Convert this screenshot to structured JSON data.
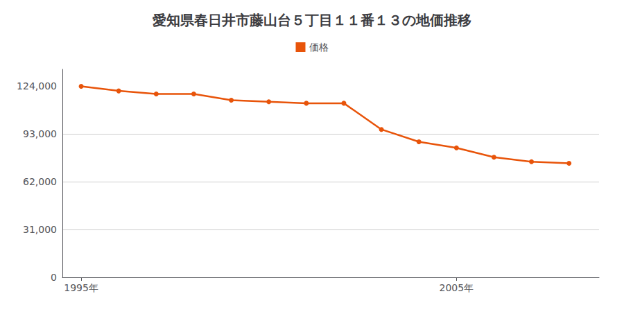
{
  "chart_data": {
    "type": "line",
    "title": "愛知県春日井市藤山台５丁目１１番１３の地価推移",
    "x": [
      1995,
      1996,
      1997,
      1998,
      1999,
      2000,
      2001,
      2002,
      2003,
      2004,
      2005,
      2006,
      2007,
      2008
    ],
    "series": [
      {
        "name": "価格",
        "color": "#E8540A",
        "marker": "circle",
        "values": [
          124000,
          121000,
          119000,
          119000,
          115000,
          114000,
          113000,
          113000,
          96000,
          88000,
          84000,
          78000,
          75000,
          74000
        ]
      }
    ],
    "xlim": [
      1994.5,
      2008.8
    ],
    "xticks": [
      {
        "value": 1995,
        "label": "1995年"
      },
      {
        "value": 2005,
        "label": "2005年"
      }
    ],
    "ylim": [
      0,
      135000
    ],
    "yticks": [
      0,
      {
        "value": 31000,
        "label": "31,000"
      },
      {
        "value": 62000,
        "label": "62,000"
      },
      {
        "value": 93000,
        "label": "93,000"
      },
      {
        "value": 124000,
        "label": "124,000"
      }
    ],
    "grid": true,
    "legend": "top"
  }
}
